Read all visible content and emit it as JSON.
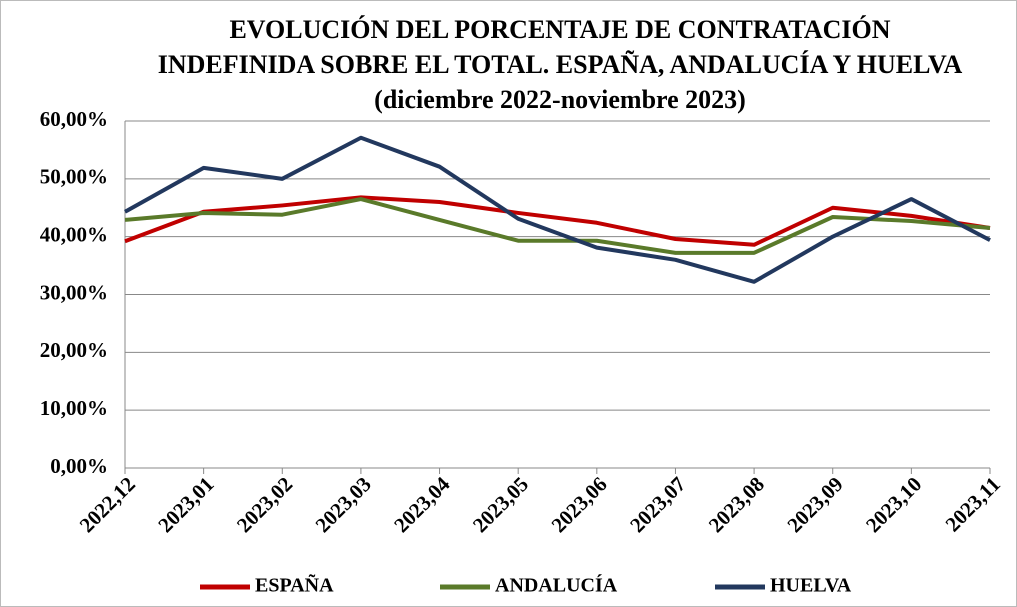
{
  "chart_data": {
    "type": "line",
    "title": [
      "EVOLUCIÓN DEL PORCENTAJE DE CONTRATACIÓN",
      "INDEFINIDA SOBRE EL TOTAL. ESPAÑA, ANDALUCÍA Y HUELVA",
      "(diciembre 2022-noviembre 2023)"
    ],
    "categories": [
      "2022,12",
      "2023,01",
      "2023,02",
      "2023,03",
      "2023,04",
      "2023,05",
      "2023,06",
      "2023,07",
      "2023,08",
      "2023,09",
      "2023,10",
      "2023,11"
    ],
    "series": [
      {
        "name": "ESPAÑA",
        "color": "#c00000",
        "values": [
          39.2,
          44.3,
          45.4,
          46.8,
          46.0,
          44.1,
          42.4,
          39.6,
          38.6,
          45.0,
          43.6,
          41.5
        ]
      },
      {
        "name": "ANDALUCÍA",
        "color": "#5a7a2a",
        "values": [
          42.9,
          44.1,
          43.8,
          46.5,
          42.9,
          39.3,
          39.3,
          37.2,
          37.2,
          43.4,
          42.7,
          41.5
        ]
      },
      {
        "name": "HUELVA",
        "color": "#22385e",
        "values": [
          44.3,
          51.9,
          50.0,
          57.1,
          52.1,
          43.1,
          38.1,
          36.0,
          32.2,
          40.0,
          46.5,
          39.4
        ]
      }
    ],
    "ylim": [
      0,
      60
    ],
    "yticks": [
      {
        "value": 0,
        "label": "0,00%"
      },
      {
        "value": 10,
        "label": "10,00%"
      },
      {
        "value": 20,
        "label": "20,00%"
      },
      {
        "value": 30,
        "label": "30,00%"
      },
      {
        "value": 40,
        "label": "40,00%"
      },
      {
        "value": 50,
        "label": "50,00%"
      },
      {
        "value": 60,
        "label": "60,00%"
      }
    ],
    "grid": true,
    "legend": "bottom"
  }
}
